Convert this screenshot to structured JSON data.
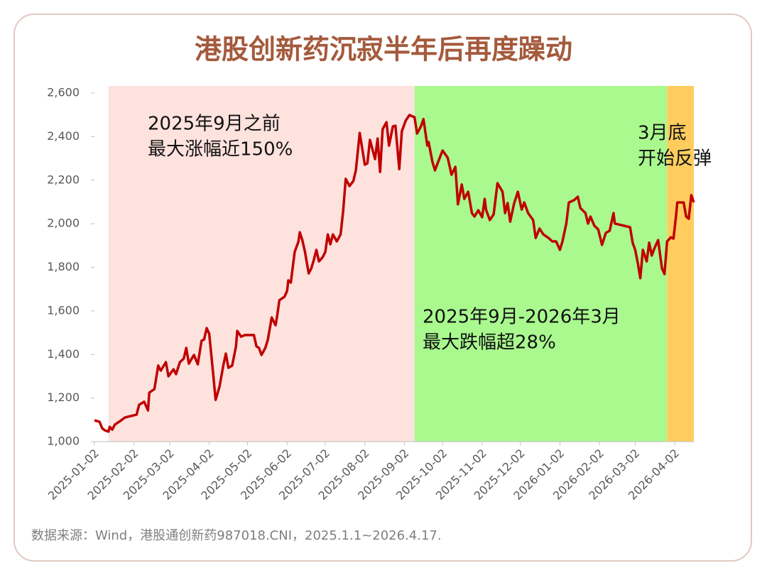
{
  "chart_data": {
    "type": "line",
    "title": "港股创新药沉寂半年后再度躁动",
    "source": "数据来源：Wind，港股通创新药987018.CNI，2025.1.1~2026.4.17.",
    "xlim": [
      "2025-01-02",
      "2026-04-17"
    ],
    "xticks": [
      "2025-01-02",
      "2025-02-02",
      "2025-03-02",
      "2025-04-02",
      "2025-05-02",
      "2025-06-02",
      "2025-07-02",
      "2025-08-02",
      "2025-09-02",
      "2025-10-02",
      "2025-11-02",
      "2025-12-02",
      "2026-01-02",
      "2026-02-02",
      "2026-03-02",
      "2026-04-02"
    ],
    "ylim": [
      1000,
      2600
    ],
    "yticks": [
      {
        "value": 1000,
        "label": "1,000"
      },
      {
        "value": 1200,
        "label": "1,200"
      },
      {
        "value": 1400,
        "label": "1,400"
      },
      {
        "value": 1600,
        "label": "1,600"
      },
      {
        "value": 1800,
        "label": "1,800"
      },
      {
        "value": 2000,
        "label": "2,000"
      },
      {
        "value": 2200,
        "label": "2,200"
      },
      {
        "value": 2400,
        "label": "2,400"
      },
      {
        "value": 2600,
        "label": "2,600"
      }
    ],
    "regions": [
      {
        "start": "2025-01-13",
        "end": "2025-09-10",
        "color": "#fde2de",
        "label": [
          "2025年9月之前",
          "最大涨幅近150%"
        ]
      },
      {
        "start": "2025-09-10",
        "end": "2026-03-27",
        "color": "#a9f98f",
        "label": [
          "2025年9月-2026年3月",
          "最大跌幅超28%"
        ]
      },
      {
        "start": "2026-03-27",
        "end": "2026-04-17",
        "color": "#ffcd5e",
        "label": [
          "3月底",
          "开始反弹"
        ]
      }
    ],
    "series": [
      {
        "name": "港股通创新药",
        "color": "#c00000",
        "x": [
          "2025-01-02",
          "2025-01-06",
          "2025-01-08",
          "2025-01-10",
          "2025-01-13",
          "2025-01-14",
          "2025-01-16",
          "2025-01-18",
          "2025-01-23",
          "2025-01-26",
          "2025-02-04",
          "2025-02-06",
          "2025-02-10",
          "2025-02-13",
          "2025-02-14",
          "2025-02-18",
          "2025-02-21",
          "2025-02-23",
          "2025-02-27",
          "2025-03-01",
          "2025-03-05",
          "2025-03-07",
          "2025-03-10",
          "2025-03-13",
          "2025-03-15",
          "2025-03-17",
          "2025-03-21",
          "2025-03-24",
          "2025-03-27",
          "2025-03-29",
          "2025-03-31",
          "2025-04-02",
          "2025-04-05",
          "2025-04-07",
          "2025-04-10",
          "2025-04-13",
          "2025-04-15",
          "2025-04-17",
          "2025-04-20",
          "2025-04-23",
          "2025-04-24",
          "2025-04-27",
          "2025-04-30",
          "2025-05-07",
          "2025-05-09",
          "2025-05-11",
          "2025-05-13",
          "2025-05-16",
          "2025-05-18",
          "2025-05-21",
          "2025-05-24",
          "2025-05-25",
          "2025-05-27",
          "2025-05-31",
          "2025-06-02",
          "2025-06-03",
          "2025-06-05",
          "2025-06-08",
          "2025-06-11",
          "2025-06-12",
          "2025-06-14",
          "2025-06-16",
          "2025-06-19",
          "2025-06-21",
          "2025-06-23",
          "2025-06-25",
          "2025-06-27",
          "2025-06-30",
          "2025-07-02",
          "2025-07-04",
          "2025-07-06",
          "2025-07-08",
          "2025-07-11",
          "2025-07-14",
          "2025-07-16",
          "2025-07-18",
          "2025-07-21",
          "2025-07-24",
          "2025-07-26",
          "2025-07-29",
          "2025-08-02",
          "2025-08-04",
          "2025-08-06",
          "2025-08-10",
          "2025-08-12",
          "2025-08-14",
          "2025-08-16",
          "2025-08-19",
          "2025-08-21",
          "2025-08-24",
          "2025-08-26",
          "2025-08-29",
          "2025-08-31",
          "2025-09-03",
          "2025-09-06",
          "2025-09-10",
          "2025-09-12",
          "2025-09-15",
          "2025-09-17",
          "2025-09-20",
          "2025-09-21",
          "2025-09-24",
          "2025-09-26",
          "2025-09-28",
          "2025-10-02",
          "2025-10-06",
          "2025-10-09",
          "2025-10-12",
          "2025-10-14",
          "2025-10-17",
          "2025-10-19",
          "2025-10-22",
          "2025-10-25",
          "2025-10-27",
          "2025-10-30",
          "2025-11-02",
          "2025-11-04",
          "2025-11-05",
          "2025-11-08",
          "2025-11-11",
          "2025-11-14",
          "2025-11-18",
          "2025-11-20",
          "2025-11-22",
          "2025-11-24",
          "2025-11-27",
          "2025-11-30",
          "2025-12-03",
          "2025-12-05",
          "2025-12-08",
          "2025-12-12",
          "2025-12-14",
          "2025-12-17",
          "2025-12-20",
          "2025-12-24",
          "2025-12-27",
          "2025-12-30",
          "2026-01-02",
          "2026-01-04",
          "2026-01-07",
          "2026-01-09",
          "2026-01-13",
          "2026-01-16",
          "2026-01-18",
          "2026-01-22",
          "2026-01-24",
          "2026-01-26",
          "2026-01-29",
          "2026-02-01",
          "2026-02-04",
          "2026-02-07",
          "2026-02-10",
          "2026-02-13",
          "2026-02-14",
          "2026-02-26",
          "2026-02-28",
          "2026-03-02",
          "2026-03-04",
          "2026-03-06",
          "2026-03-08",
          "2026-03-11",
          "2026-03-13",
          "2026-03-15",
          "2026-03-17",
          "2026-03-20",
          "2026-03-23",
          "2026-03-25",
          "2026-03-27",
          "2026-03-30",
          "2026-04-01",
          "2026-04-03",
          "2026-04-04",
          "2026-04-09",
          "2026-04-11",
          "2026-04-13",
          "2026-04-15",
          "2026-04-17"
        ],
        "values": [
          1098,
          1091,
          1062,
          1052,
          1046,
          1068,
          1055,
          1078,
          1098,
          1111,
          1124,
          1169,
          1183,
          1143,
          1225,
          1241,
          1349,
          1326,
          1365,
          1300,
          1332,
          1310,
          1365,
          1381,
          1430,
          1358,
          1398,
          1355,
          1463,
          1469,
          1521,
          1495,
          1316,
          1192,
          1251,
          1349,
          1404,
          1339,
          1349,
          1437,
          1508,
          1482,
          1489,
          1489,
          1437,
          1430,
          1398,
          1430,
          1469,
          1570,
          1534,
          1567,
          1649,
          1665,
          1691,
          1740,
          1730,
          1870,
          1919,
          1961,
          1925,
          1873,
          1772,
          1795,
          1834,
          1880,
          1827,
          1847,
          1870,
          1951,
          1906,
          1951,
          1919,
          1951,
          2059,
          2206,
          2173,
          2196,
          2245,
          2417,
          2271,
          2277,
          2385,
          2297,
          2391,
          2238,
          2434,
          2466,
          2359,
          2447,
          2450,
          2251,
          2424,
          2473,
          2499,
          2489,
          2414,
          2447,
          2480,
          2359,
          2375,
          2284,
          2245,
          2277,
          2336,
          2303,
          2225,
          2261,
          2089,
          2180,
          2114,
          2147,
          2049,
          2033,
          2062,
          2030,
          2114,
          2065,
          2017,
          2043,
          2186,
          2147,
          2049,
          2095,
          2010,
          2092,
          2147,
          2065,
          2098,
          2049,
          2017,
          1935,
          1978,
          1951,
          1935,
          1919,
          1919,
          1880,
          1919,
          2001,
          2098,
          2108,
          2124,
          2072,
          2049,
          2001,
          2033,
          1991,
          1974,
          1903,
          1958,
          1968,
          2049,
          2001,
          1984,
          1913,
          1880,
          1821,
          1750,
          1880,
          1827,
          1913,
          1854,
          1886,
          1925,
          1795,
          1769,
          1919,
          1938,
          1932,
          2036,
          2098,
          2098,
          2033,
          2023,
          2131,
          2098
        ]
      }
    ]
  }
}
